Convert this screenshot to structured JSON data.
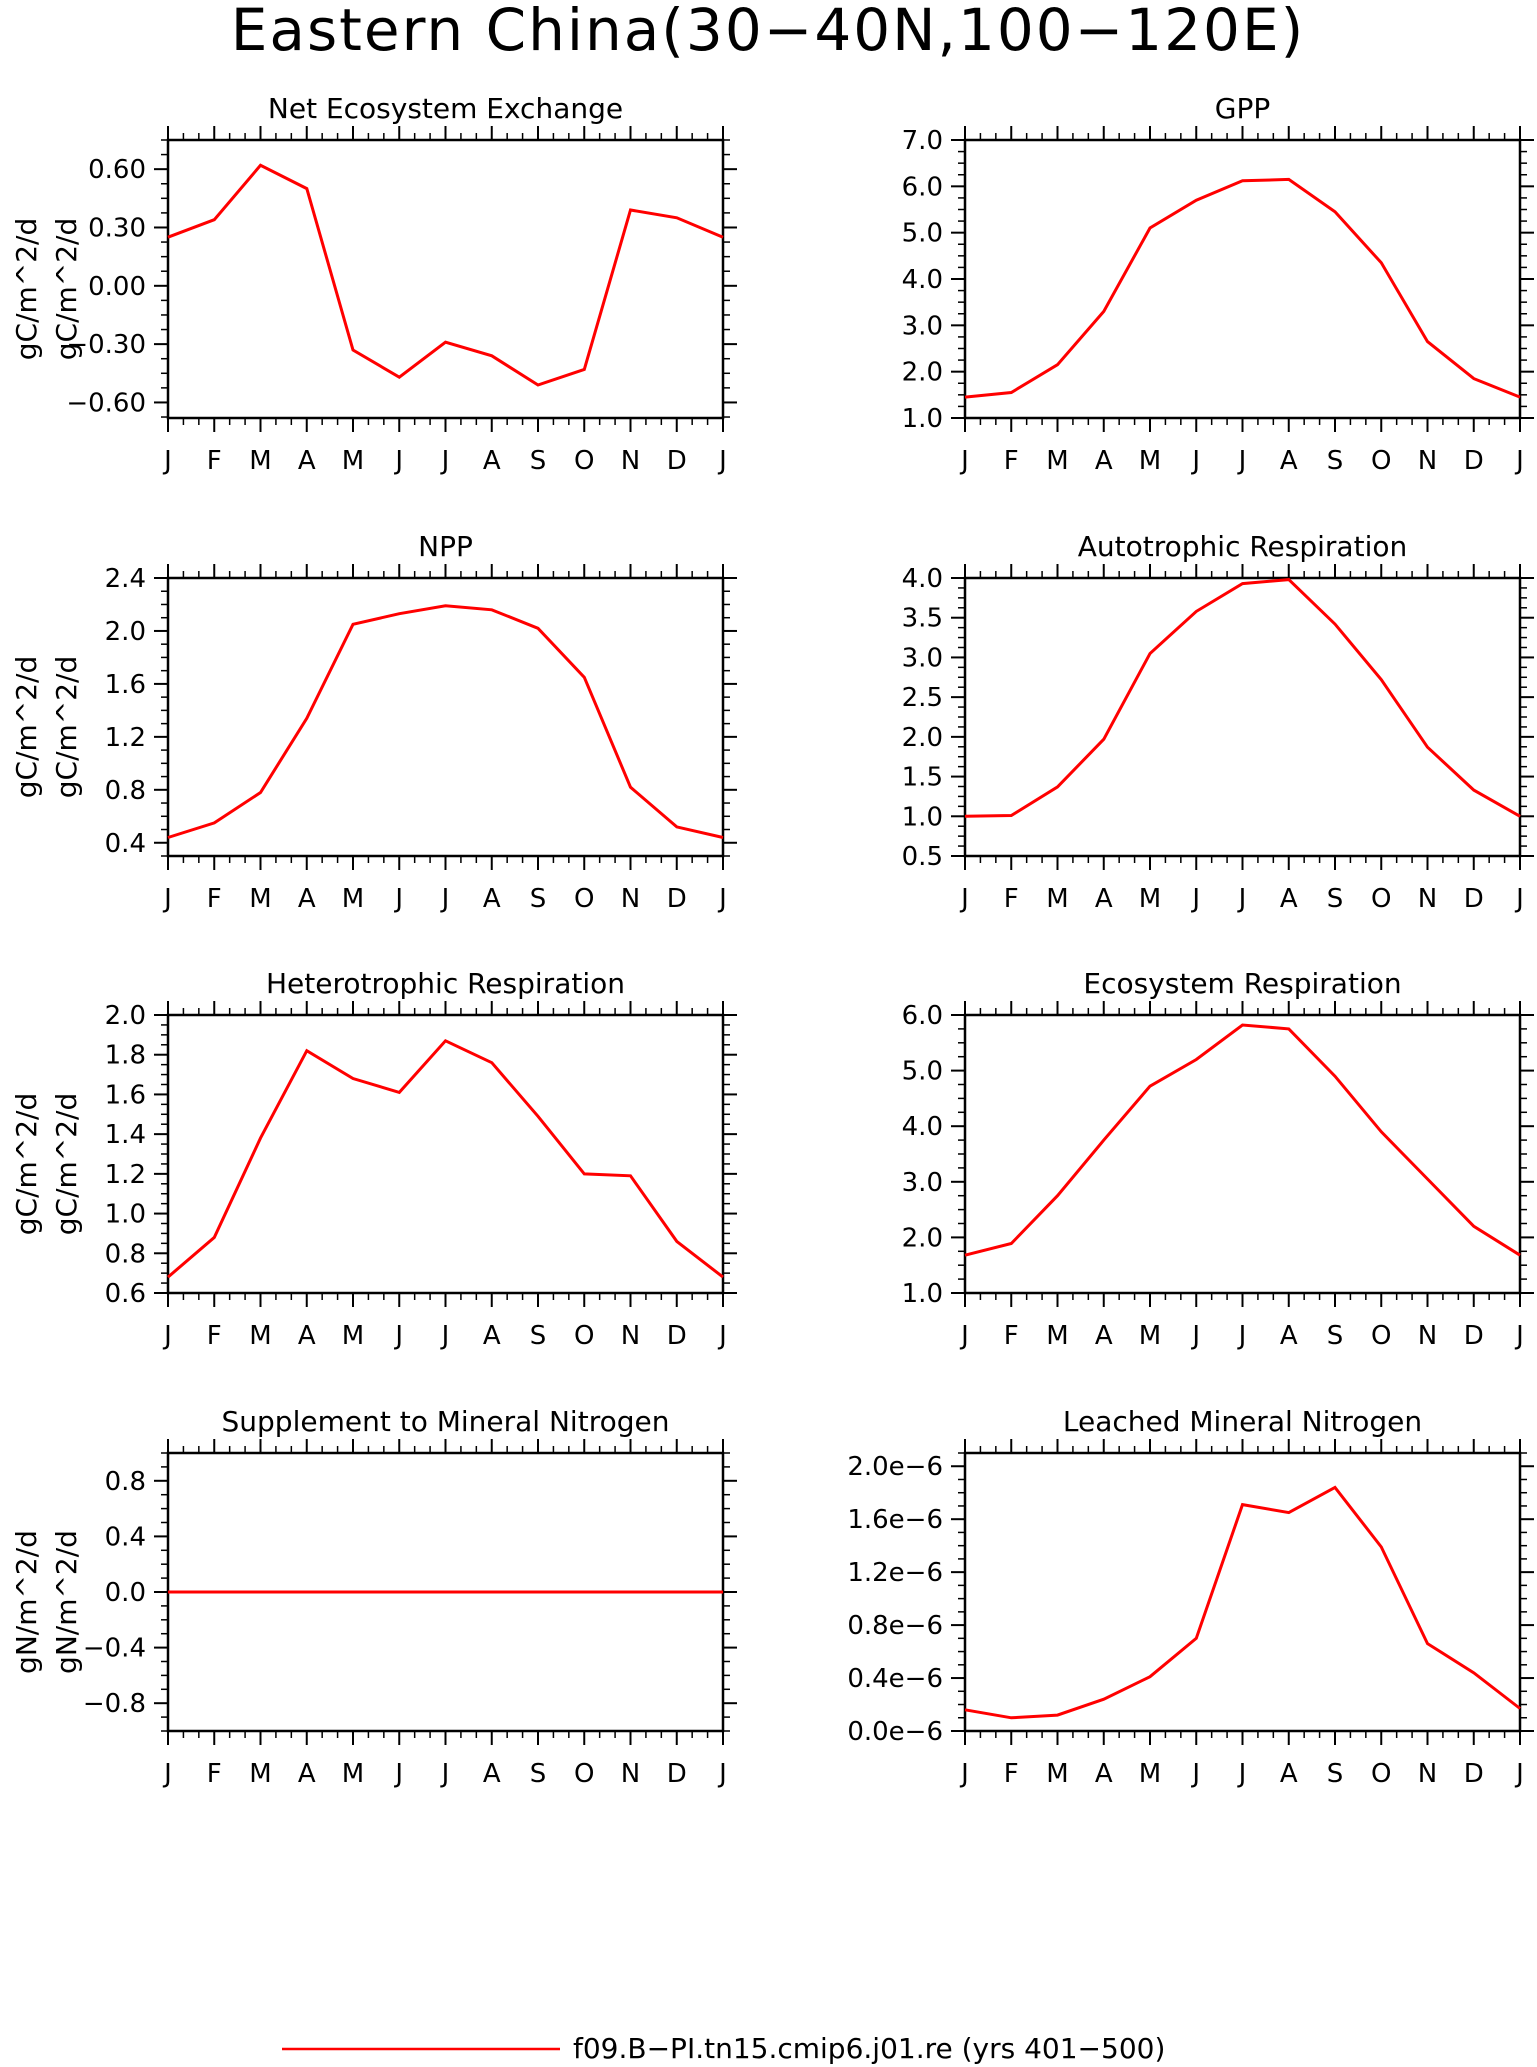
{
  "title": "Eastern China(30−40N,100−120E)",
  "legend": {
    "label": "f09.B−PI.tn15.cmip6.j01.re (yrs 401−500)",
    "color": "#ff0000"
  },
  "months": [
    "J",
    "F",
    "M",
    "A",
    "M",
    "J",
    "J",
    "A",
    "S",
    "O",
    "N",
    "D",
    "J"
  ],
  "chart_data": [
    {
      "type": "line",
      "title": "Net Ecosystem Exchange",
      "ylabel": "gC/m^2/d",
      "ylim": [
        -0.68,
        0.75
      ],
      "yticks": [
        "0.60",
        "0.30",
        "0.00",
        "−0.30",
        "−0.60"
      ],
      "ytick_values": [
        0.6,
        0.3,
        0.0,
        -0.3,
        -0.6
      ],
      "x": [
        "J",
        "F",
        "M",
        "A",
        "M",
        "J",
        "J",
        "A",
        "S",
        "O",
        "N",
        "D",
        "J"
      ],
      "values": [
        0.25,
        0.34,
        0.62,
        0.5,
        -0.33,
        -0.47,
        -0.29,
        -0.36,
        -0.51,
        -0.43,
        0.39,
        0.35,
        0.25
      ]
    },
    {
      "type": "line",
      "title": "GPP",
      "ylabel": "gC/m^2/d",
      "ylim": [
        1.0,
        7.0
      ],
      "yticks": [
        "7.0",
        "6.0",
        "5.0",
        "4.0",
        "3.0",
        "2.0",
        "1.0"
      ],
      "ytick_values": [
        7,
        6,
        5,
        4,
        3,
        2,
        1
      ],
      "x": [
        "J",
        "F",
        "M",
        "A",
        "M",
        "J",
        "J",
        "A",
        "S",
        "O",
        "N",
        "D",
        "J"
      ],
      "values": [
        1.45,
        1.55,
        2.15,
        3.3,
        5.1,
        5.7,
        6.12,
        6.15,
        5.45,
        4.35,
        2.65,
        1.85,
        1.45
      ]
    },
    {
      "type": "line",
      "title": "NPP",
      "ylabel": "gC/m^2/d",
      "ylim": [
        0.3,
        2.4
      ],
      "yticks": [
        "2.4",
        "2.0",
        "1.6",
        "1.2",
        "0.8",
        "0.4"
      ],
      "ytick_values": [
        2.4,
        2.0,
        1.6,
        1.2,
        0.8,
        0.4
      ],
      "x": [
        "J",
        "F",
        "M",
        "A",
        "M",
        "J",
        "J",
        "A",
        "S",
        "O",
        "N",
        "D",
        "J"
      ],
      "values": [
        0.44,
        0.55,
        0.78,
        1.34,
        2.05,
        2.13,
        2.19,
        2.16,
        2.02,
        1.65,
        0.82,
        0.52,
        0.44
      ]
    },
    {
      "type": "line",
      "title": "Autotrophic Respiration",
      "ylabel": "gC/m^2/d",
      "ylim": [
        0.5,
        4.0
      ],
      "yticks": [
        "4.0",
        "3.5",
        "3.0",
        "2.5",
        "2.0",
        "1.5",
        "1.0",
        "0.5"
      ],
      "ytick_values": [
        4.0,
        3.5,
        3.0,
        2.5,
        2.0,
        1.5,
        1.0,
        0.5
      ],
      "x": [
        "J",
        "F",
        "M",
        "A",
        "M",
        "J",
        "J",
        "A",
        "S",
        "O",
        "N",
        "D",
        "J"
      ],
      "values": [
        1.0,
        1.01,
        1.37,
        1.97,
        3.05,
        3.58,
        3.93,
        3.98,
        3.42,
        2.72,
        1.87,
        1.33,
        1.0
      ]
    },
    {
      "type": "line",
      "title": "Heterotrophic Respiration",
      "ylabel": "gC/m^2/d",
      "ylim": [
        0.6,
        2.0
      ],
      "yticks": [
        "2.0",
        "1.8",
        "1.6",
        "1.4",
        "1.2",
        "1.0",
        "0.8",
        "0.6"
      ],
      "ytick_values": [
        2.0,
        1.8,
        1.6,
        1.4,
        1.2,
        1.0,
        0.8,
        0.6
      ],
      "x": [
        "J",
        "F",
        "M",
        "A",
        "M",
        "J",
        "J",
        "A",
        "S",
        "O",
        "N",
        "D",
        "J"
      ],
      "values": [
        0.68,
        0.88,
        1.38,
        1.82,
        1.68,
        1.61,
        1.87,
        1.76,
        1.49,
        1.2,
        1.19,
        0.86,
        0.68
      ]
    },
    {
      "type": "line",
      "title": "Ecosystem Respiration",
      "ylabel": "gC/m^2/d",
      "ylim": [
        1.0,
        6.0
      ],
      "yticks": [
        "6.0",
        "5.0",
        "4.0",
        "3.0",
        "2.0",
        "1.0"
      ],
      "ytick_values": [
        6,
        5,
        4,
        3,
        2,
        1
      ],
      "x": [
        "J",
        "F",
        "M",
        "A",
        "M",
        "J",
        "J",
        "A",
        "S",
        "O",
        "N",
        "D",
        "J"
      ],
      "values": [
        1.68,
        1.89,
        2.75,
        3.75,
        4.72,
        5.2,
        5.82,
        5.75,
        4.9,
        3.9,
        3.05,
        2.2,
        1.68
      ]
    },
    {
      "type": "line",
      "title": "Supplement to Mineral Nitrogen",
      "ylabel": "gN/m^2/d",
      "ylim": [
        -1.0,
        1.0
      ],
      "yticks": [
        "0.8",
        "0.4",
        "0.0",
        "−0.4",
        "−0.8"
      ],
      "ytick_values": [
        0.8,
        0.4,
        0.0,
        -0.4,
        -0.8
      ],
      "x": [
        "J",
        "F",
        "M",
        "A",
        "M",
        "J",
        "J",
        "A",
        "S",
        "O",
        "N",
        "D",
        "J"
      ],
      "values": [
        0,
        0,
        0,
        0,
        0,
        0,
        0,
        0,
        0,
        0,
        0,
        0,
        0
      ]
    },
    {
      "type": "line",
      "title": "Leached Mineral Nitrogen",
      "ylabel": "gN/m^2/d",
      "ylim": [
        0.0,
        2.1
      ],
      "yticks": [
        "2.0e−6",
        "1.6e−6",
        "1.2e−6",
        "0.8e−6",
        "0.4e−6",
        "0.0e−6"
      ],
      "ytick_values": [
        2.0,
        1.6,
        1.2,
        0.8,
        0.4,
        0.0
      ],
      "x": [
        "J",
        "F",
        "M",
        "A",
        "M",
        "J",
        "J",
        "A",
        "S",
        "O",
        "N",
        "D",
        "J"
      ],
      "values_e6": [
        0.16,
        0.1,
        0.12,
        0.24,
        0.41,
        0.7,
        1.71,
        1.65,
        1.84,
        1.39,
        0.66,
        0.44,
        0.17
      ]
    }
  ]
}
